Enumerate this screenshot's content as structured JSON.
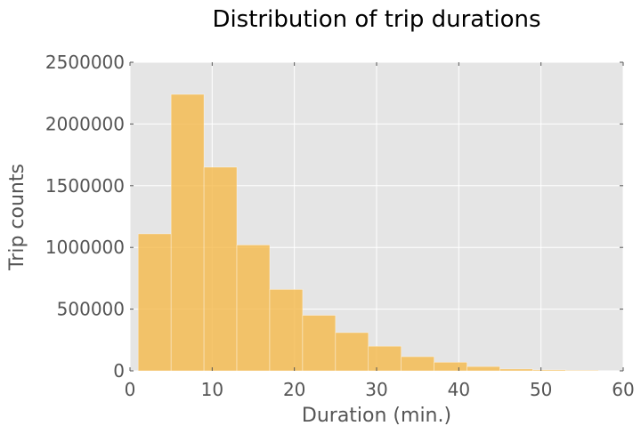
{
  "chart_data": {
    "type": "bar",
    "title": "Distribution of trip durations",
    "xlabel": "Duration (min.)",
    "ylabel": "Trip counts",
    "xlim": [
      0,
      60
    ],
    "ylim": [
      0,
      2500000
    ],
    "xticks": [
      "0",
      "10",
      "20",
      "30",
      "40",
      "50",
      "60"
    ],
    "yticks": [
      "0",
      "500000",
      "1000000",
      "1500000",
      "2000000",
      "2500000"
    ],
    "grid": true,
    "bin_edges": [
      1,
      5,
      9,
      13,
      17,
      21,
      25,
      29,
      33,
      37,
      41,
      45,
      49,
      53,
      57
    ],
    "values": [
      1110000,
      2240000,
      1650000,
      1020000,
      660000,
      450000,
      310000,
      200000,
      115000,
      70000,
      35000,
      15000,
      8000,
      5000
    ],
    "bar_color": "#f5b94a",
    "background_color": "#e5e5e5"
  }
}
